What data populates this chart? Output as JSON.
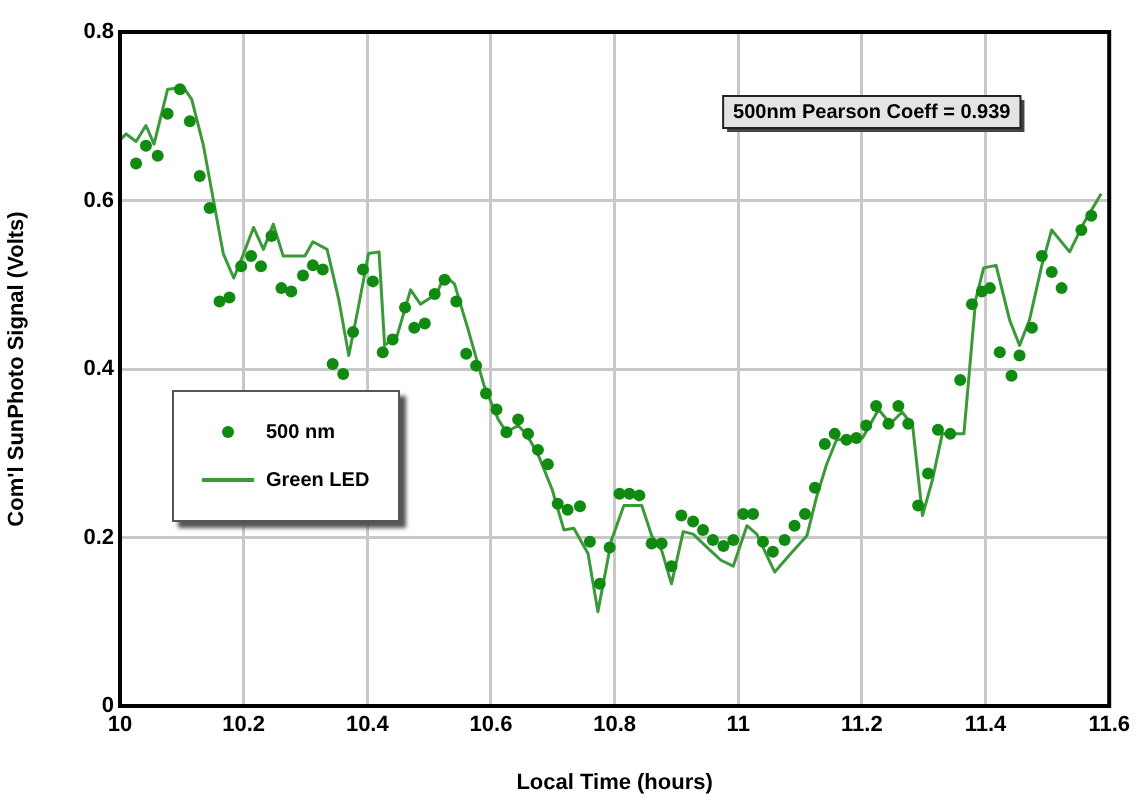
{
  "chart_data": {
    "type": "scatter",
    "xlabel": "Local Time (hours)",
    "ylabel": "Com'l SunPhoto Signal (Volts)",
    "xlim": [
      10,
      11.6
    ],
    "xticks": [
      10,
      10.2,
      10.4,
      10.6,
      10.8,
      11,
      11.2,
      11.4,
      11.6
    ],
    "ylim": [
      0,
      0.8
    ],
    "yticks": [
      0,
      0.2,
      0.4,
      0.6,
      0.8
    ],
    "grid": true,
    "legend": "left",
    "annotations": [
      "500nm Pearson Coeff = 0.939"
    ],
    "series": [
      {
        "name": "500 nm",
        "marker": "circle",
        "color": "#118a11",
        "x": [
          10.026,
          10.042,
          10.061,
          10.077,
          10.097,
          10.113,
          10.129,
          10.145,
          10.161,
          10.177,
          10.196,
          10.212,
          10.228,
          10.245,
          10.261,
          10.277,
          10.296,
          10.312,
          10.328,
          10.344,
          10.361,
          10.377,
          10.393,
          10.409,
          10.425,
          10.441,
          10.461,
          10.476,
          10.493,
          10.509,
          10.525,
          10.544,
          10.56,
          10.576,
          10.592,
          10.609,
          10.625,
          10.644,
          10.66,
          10.676,
          10.692,
          10.708,
          10.724,
          10.744,
          10.76,
          10.776,
          10.792,
          10.808,
          10.824,
          10.84,
          10.86,
          10.876,
          10.892,
          10.908,
          10.927,
          10.943,
          10.959,
          10.976,
          10.992,
          11.008,
          11.024,
          11.04,
          11.056,
          11.075,
          11.091,
          11.108,
          11.124,
          11.14,
          11.156,
          11.175,
          11.191,
          11.207,
          11.223,
          11.243,
          11.259,
          11.275,
          11.291,
          11.307,
          11.323,
          11.343,
          11.359,
          11.378,
          11.394,
          11.407,
          11.423,
          11.442,
          11.455,
          11.475,
          11.491,
          11.507,
          11.523,
          11.555,
          11.571
        ],
        "values": [
          0.644,
          0.665,
          0.653,
          0.703,
          0.732,
          0.694,
          0.629,
          0.591,
          0.48,
          0.485,
          0.522,
          0.534,
          0.522,
          0.558,
          0.496,
          0.492,
          0.511,
          0.523,
          0.518,
          0.406,
          0.394,
          0.444,
          0.518,
          0.504,
          0.42,
          0.435,
          0.473,
          0.449,
          0.454,
          0.489,
          0.506,
          0.48,
          0.418,
          0.404,
          0.371,
          0.352,
          0.325,
          0.34,
          0.323,
          0.304,
          0.287,
          0.24,
          0.233,
          0.237,
          0.195,
          0.145,
          0.188,
          0.252,
          0.252,
          0.25,
          0.193,
          0.193,
          0.166,
          0.226,
          0.219,
          0.209,
          0.197,
          0.19,
          0.197,
          0.228,
          0.228,
          0.195,
          0.183,
          0.197,
          0.214,
          0.228,
          0.259,
          0.311,
          0.323,
          0.316,
          0.318,
          0.333,
          0.356,
          0.335,
          0.356,
          0.335,
          0.238,
          0.276,
          0.328,
          0.323,
          0.387,
          0.477,
          0.492,
          0.496,
          0.42,
          0.392,
          0.416,
          0.449,
          0.534,
          0.515,
          0.496,
          0.565,
          0.582
        ]
      },
      {
        "name": "Green LED",
        "type": "line",
        "marker": "none",
        "line_style": "solid",
        "color": "#3a9a3a",
        "x": [
          10,
          10.01,
          10.026,
          10.042,
          10.055,
          10.077,
          10.103,
          10.116,
          10.135,
          10.151,
          10.167,
          10.184,
          10.2,
          10.216,
          10.232,
          10.248,
          10.264,
          10.299,
          10.312,
          10.335,
          10.354,
          10.37,
          10.386,
          10.402,
          10.419,
          10.428,
          10.448,
          10.47,
          10.486,
          10.512,
          10.525,
          10.541,
          10.563,
          10.589,
          10.612,
          10.625,
          10.644,
          10.657,
          10.676,
          10.699,
          10.718,
          10.734,
          10.757,
          10.773,
          10.795,
          10.815,
          10.844,
          10.86,
          10.876,
          10.892,
          10.911,
          10.927,
          10.95,
          10.972,
          10.992,
          11.014,
          11.03,
          11.059,
          11.085,
          11.111,
          11.127,
          11.143,
          11.159,
          11.201,
          11.227,
          11.246,
          11.265,
          11.282,
          11.298,
          11.314,
          11.33,
          11.365,
          11.384,
          11.397,
          11.417,
          11.439,
          11.455,
          11.471,
          11.491,
          11.507,
          11.536,
          11.558,
          11.587
        ],
        "values": [
          0.672,
          0.679,
          0.67,
          0.689,
          0.667,
          0.732,
          0.734,
          0.72,
          0.665,
          0.601,
          0.537,
          0.508,
          0.537,
          0.568,
          0.542,
          0.572,
          0.534,
          0.534,
          0.551,
          0.542,
          0.482,
          0.416,
          0.475,
          0.537,
          0.539,
          0.428,
          0.439,
          0.494,
          0.477,
          0.489,
          0.511,
          0.501,
          0.447,
          0.38,
          0.34,
          0.325,
          0.333,
          0.323,
          0.299,
          0.257,
          0.209,
          0.211,
          0.181,
          0.112,
          0.197,
          0.238,
          0.238,
          0.202,
          0.185,
          0.145,
          0.207,
          0.204,
          0.188,
          0.173,
          0.166,
          0.214,
          0.204,
          0.159,
          0.181,
          0.202,
          0.249,
          0.287,
          0.316,
          0.318,
          0.352,
          0.335,
          0.349,
          0.333,
          0.226,
          0.268,
          0.323,
          0.323,
          0.482,
          0.52,
          0.523,
          0.458,
          0.428,
          0.458,
          0.523,
          0.565,
          0.539,
          0.572,
          0.608
        ]
      }
    ]
  }
}
